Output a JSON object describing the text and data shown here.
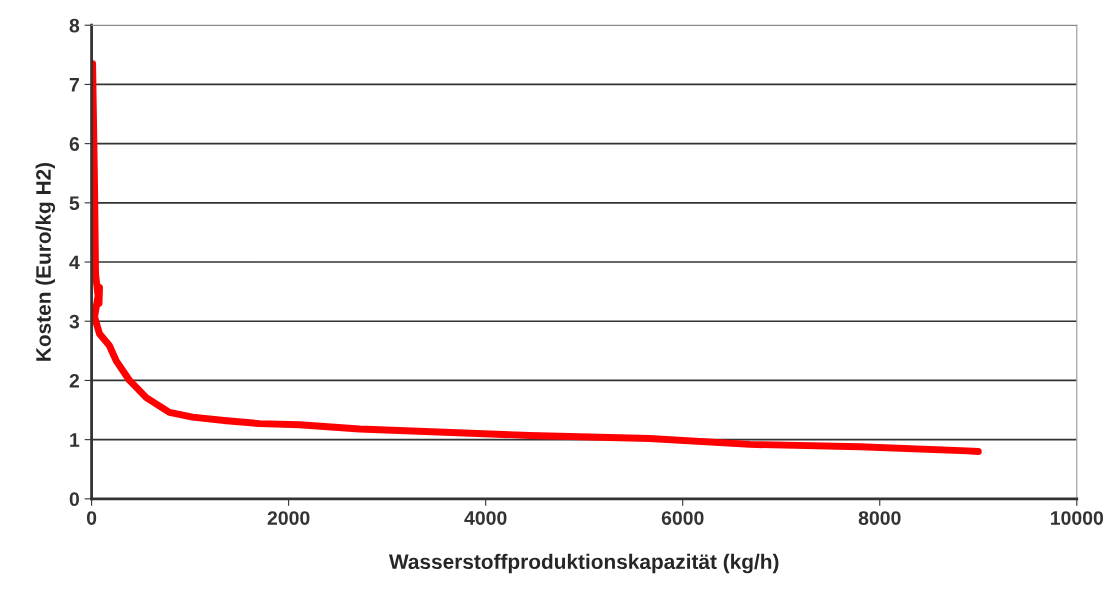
{
  "chart_data": {
    "type": "line",
    "xlabel": "Wasserstoffproduktionskapazität (kg/h)",
    "ylabel": "Kosten (Euro/kg H2)",
    "series": [
      {
        "color": "#ff0000",
        "x": [
          10,
          30,
          40,
          75,
          80,
          30,
          80,
          180,
          250,
          385,
          555,
          790,
          1025,
          1370,
          1705,
          2110,
          2720,
          4450,
          5665,
          6680,
          7800,
          8890,
          9000
        ],
        "values": [
          7.35,
          5.27,
          3.8,
          3.3,
          3.57,
          3.07,
          2.79,
          2.59,
          2.33,
          2.0,
          1.71,
          1.46,
          1.38,
          1.32,
          1.27,
          1.25,
          1.18,
          1.07,
          1.02,
          0.92,
          0.88,
          0.81,
          0.8
        ]
      }
    ],
    "xlim": [
      0,
      10000
    ],
    "xticks": [
      0,
      2000,
      4000,
      6000,
      8000,
      10000
    ],
    "ylim": [
      0,
      8
    ],
    "yticks": [
      0,
      1,
      2,
      3,
      4,
      5,
      6,
      7,
      8
    ],
    "grid": "y"
  }
}
